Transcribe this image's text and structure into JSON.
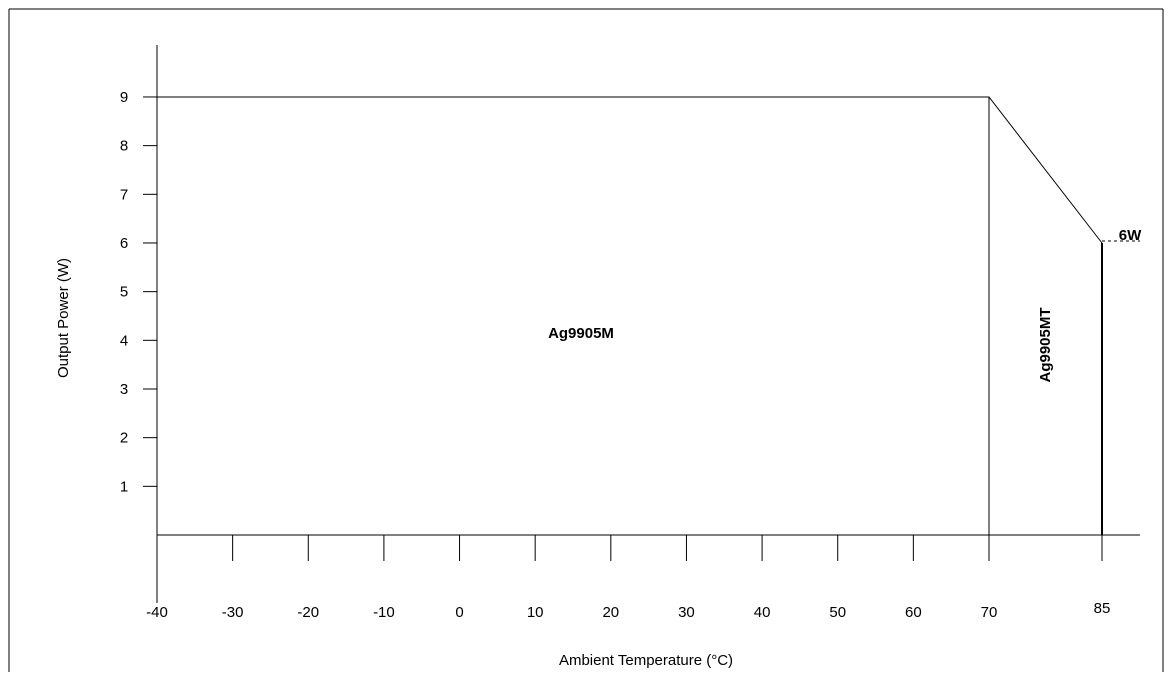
{
  "chart_data": {
    "type": "line",
    "title": "",
    "xlabel": "Ambient Temperature (°C)",
    "ylabel": "Output Power (W)",
    "xlim": [
      -40,
      85
    ],
    "ylim": [
      0,
      9
    ],
    "x_ticks": [
      -40,
      -30,
      -20,
      -10,
      0,
      10,
      20,
      30,
      40,
      50,
      60,
      70,
      85
    ],
    "y_ticks": [
      1,
      2,
      3,
      4,
      5,
      6,
      7,
      8,
      9
    ],
    "grid": false,
    "series": [
      {
        "x": [
          -40,
          70,
          85
        ],
        "y": [
          9,
          9,
          6
        ],
        "color": "#000000"
      }
    ],
    "vertical_lines": [
      {
        "x": 70,
        "y_top": 9
      },
      {
        "x": 85,
        "y_top": 6
      }
    ],
    "annotations": {
      "region_m": {
        "text": "Ag9905M",
        "x": 10,
        "y": 4
      },
      "region_mt": {
        "text": "Ag9905MT",
        "x": 77.5,
        "y": 3.5
      },
      "six_watt": {
        "text": "6W",
        "x": 85,
        "y": 6
      }
    }
  }
}
